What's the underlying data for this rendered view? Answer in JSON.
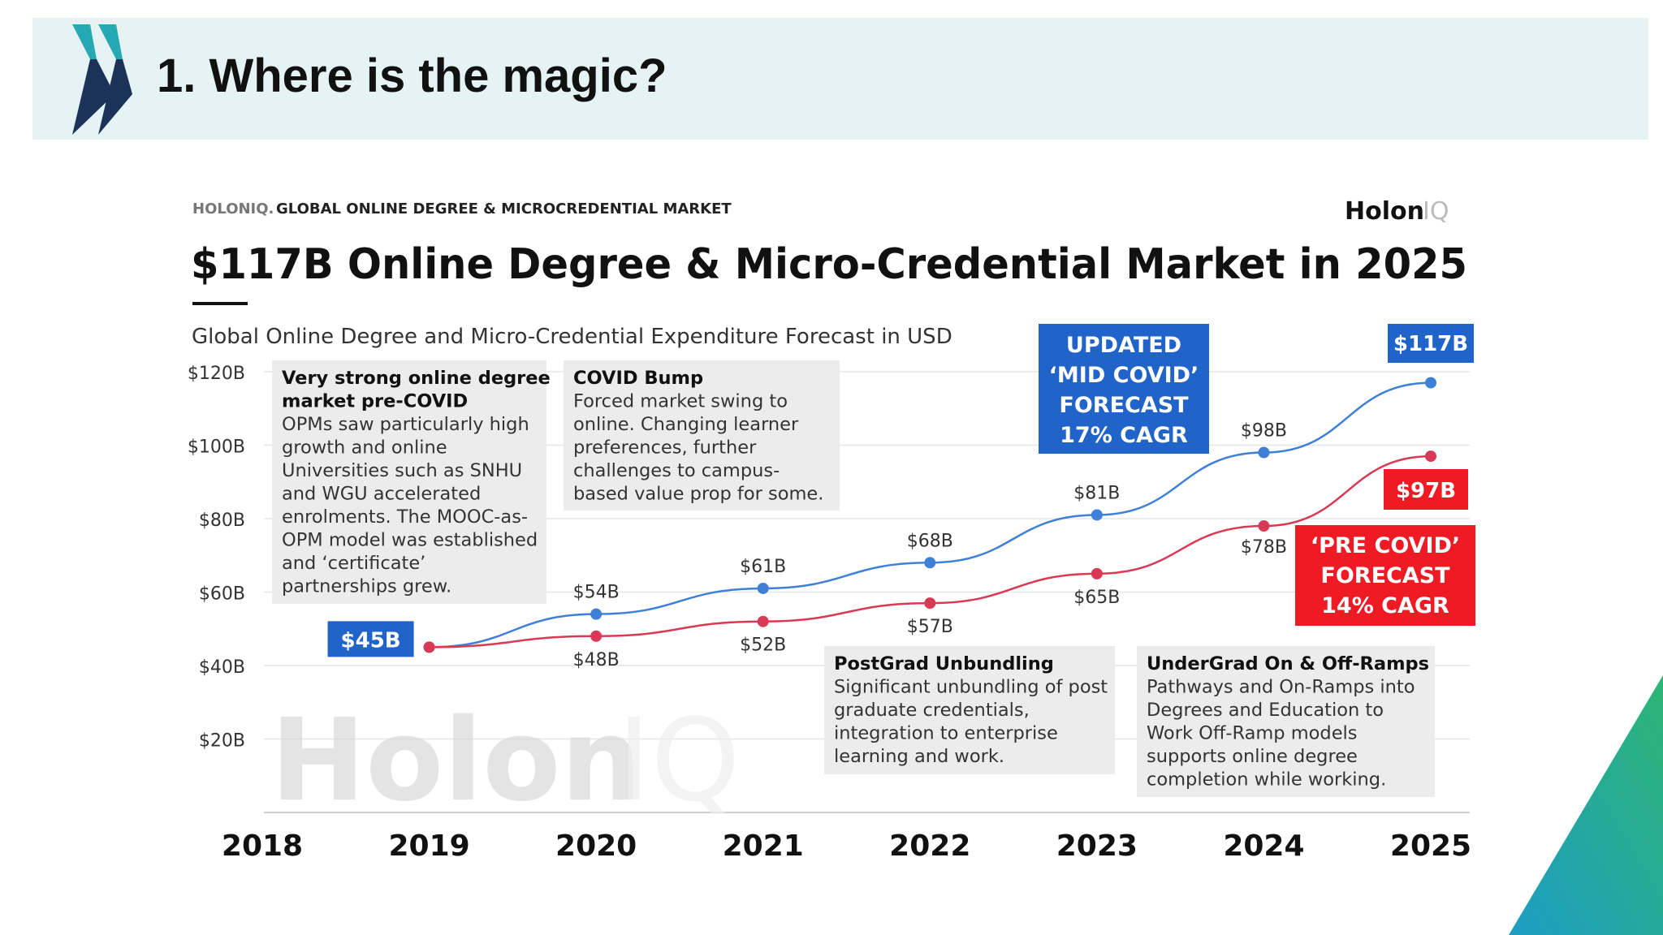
{
  "slide": {
    "title": "1. Where is the magic?"
  },
  "colors": {
    "header_bg": "#e5f3f4",
    "updated": "#3f7fd8",
    "pre_covid": "#d83a55",
    "updated_box": "#2063c9",
    "pre_covid_box": "#ee1b24",
    "annotation_bg": "#ececec"
  },
  "chart_data": {
    "type": "line",
    "source": "HOLONIQ.",
    "source_tail": "GLOBAL ONLINE DEGREE & MICROCREDENTIAL MARKET",
    "brand": {
      "word": "Holon",
      "suffix": "IQ"
    },
    "title": "$117B Online Degree & Micro-Credential Market in 2025",
    "subtitle": "Global Online Degree and Micro-Credential Expenditure Forecast in USD",
    "watermark": {
      "word": "Holon",
      "suffix": "IQ"
    },
    "x": [
      "2018",
      "2019",
      "2020",
      "2021",
      "2022",
      "2023",
      "2024",
      "2025"
    ],
    "xlim": [
      2018,
      2025
    ],
    "ylim": [
      0,
      120
    ],
    "y_ticks": [
      {
        "value": 20,
        "label": "$20B"
      },
      {
        "value": 40,
        "label": "$40B"
      },
      {
        "value": 60,
        "label": "$60B"
      },
      {
        "value": 80,
        "label": "$80B"
      },
      {
        "value": 100,
        "label": "$100B"
      },
      {
        "value": 120,
        "label": "$120B"
      }
    ],
    "grid": true,
    "series": [
      {
        "key": "updated",
        "color": "#3f7fd8",
        "points": [
          {
            "x": 2019,
            "y": 45,
            "label": "$45B"
          },
          {
            "x": 2020,
            "y": 54,
            "label": "$54B"
          },
          {
            "x": 2021,
            "y": 61,
            "label": "$61B"
          },
          {
            "x": 2022,
            "y": 68,
            "label": "$68B"
          },
          {
            "x": 2023,
            "y": 81,
            "label": "$81B"
          },
          {
            "x": 2024,
            "y": 98,
            "label": "$98B"
          },
          {
            "x": 2025,
            "y": 117,
            "label": "$117B"
          }
        ]
      },
      {
        "key": "pre_covid",
        "color": "#d83a55",
        "points": [
          {
            "x": 2019,
            "y": 45,
            "label": ""
          },
          {
            "x": 2020,
            "y": 48,
            "label": "$48B"
          },
          {
            "x": 2021,
            "y": 52,
            "label": "$52B"
          },
          {
            "x": 2022,
            "y": 57,
            "label": "$57B"
          },
          {
            "x": 2023,
            "y": 65,
            "label": "$65B"
          },
          {
            "x": 2024,
            "y": 78,
            "label": "$78B"
          },
          {
            "x": 2025,
            "y": 97,
            "label": "$97B"
          }
        ]
      }
    ],
    "callouts": [
      {
        "key": "updated",
        "lines": [
          "UPDATED",
          "‘MID COVID’",
          "FORECAST",
          "17% CAGR"
        ]
      },
      {
        "key": "pre_covid",
        "lines": [
          "‘PRE COVID’",
          "FORECAST",
          "14% CAGR"
        ]
      }
    ],
    "annotations": [
      {
        "key": "pre-covid",
        "title": [
          "Very strong online degree",
          "market pre-COVID"
        ],
        "body": [
          "OPMs saw particularly high",
          "growth and online",
          "Universities such as SNHU",
          "and WGU accelerated",
          "enrolments. The MOOC-as-",
          "OPM model was established",
          "and ‘certificate’",
          "partnerships grew."
        ]
      },
      {
        "key": "covid-bump",
        "title": [
          "COVID Bump"
        ],
        "body": [
          "Forced market swing to",
          "online. Changing learner",
          "preferences, further",
          "challenges to campus-",
          "based value prop for some."
        ]
      },
      {
        "key": "postgrad",
        "title": [
          "PostGrad Unbundling"
        ],
        "body": [
          "Significant unbundling of post",
          "graduate credentials,",
          "integration to enterprise",
          "learning and work."
        ]
      },
      {
        "key": "undergrad",
        "title": [
          "UnderGrad On & Off-Ramps"
        ],
        "body": [
          "Pathways and On-Ramps into",
          "Degrees and Education to",
          "Work Off-Ramp models",
          "supports online degree",
          "completion while working."
        ]
      }
    ]
  }
}
